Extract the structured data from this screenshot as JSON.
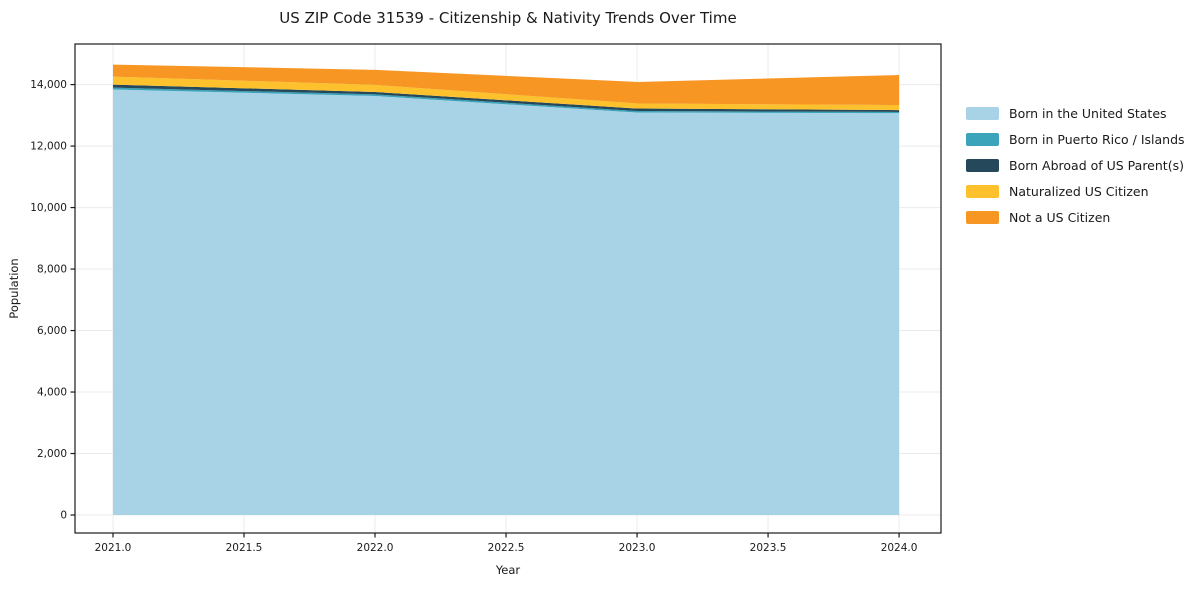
{
  "chart_data": {
    "type": "area",
    "stacked": true,
    "title": "US ZIP Code 31539 - Citizenship & Nativity Trends Over Time",
    "xlabel": "Year",
    "ylabel": "Population",
    "x": [
      2021,
      2022,
      2023,
      2024
    ],
    "series": [
      {
        "name": "Born in the United States",
        "color": "#a8d2e6",
        "values": [
          13840,
          13630,
          13090,
          13070
        ]
      },
      {
        "name": "Born in Puerto Rico / Islands",
        "color": "#3ba4ba",
        "values": [
          60,
          50,
          50,
          40
        ]
      },
      {
        "name": "Born Abroad of US Parent(s)",
        "color": "#25495b",
        "values": [
          100,
          80,
          80,
          60
        ]
      },
      {
        "name": "Naturalized US Citizen",
        "color": "#fcc12d",
        "values": [
          260,
          230,
          165,
          165
        ]
      },
      {
        "name": "Not a US Citizen",
        "color": "#f79623",
        "values": [
          390,
          490,
          700,
          975
        ]
      }
    ],
    "xticks": [
      {
        "value": 2021.0,
        "label": "2021.0"
      },
      {
        "value": 2021.5,
        "label": "2021.5"
      },
      {
        "value": 2022.0,
        "label": "2022.0"
      },
      {
        "value": 2022.5,
        "label": "2022.5"
      },
      {
        "value": 2023.0,
        "label": "2023.0"
      },
      {
        "value": 2023.5,
        "label": "2023.5"
      },
      {
        "value": 2024.0,
        "label": "2024.0"
      }
    ],
    "yticks": [
      {
        "value": 0,
        "label": "0"
      },
      {
        "value": 2000,
        "label": "2,000"
      },
      {
        "value": 4000,
        "label": "4,000"
      },
      {
        "value": 6000,
        "label": "6,000"
      },
      {
        "value": 8000,
        "label": "8,000"
      },
      {
        "value": 10000,
        "label": "10,000"
      },
      {
        "value": 12000,
        "label": "12,000"
      },
      {
        "value": 14000,
        "label": "14,000"
      }
    ],
    "xlim": [
      2020.855,
      2024.16
    ],
    "ylim": [
      -585,
      15320
    ],
    "grid": true,
    "legend_position": "right-outside",
    "colors": {
      "grid": "#ebebeb",
      "spine": "#1a1a1a",
      "tick_text": "#1a1a1a",
      "background": "#ffffff"
    }
  }
}
